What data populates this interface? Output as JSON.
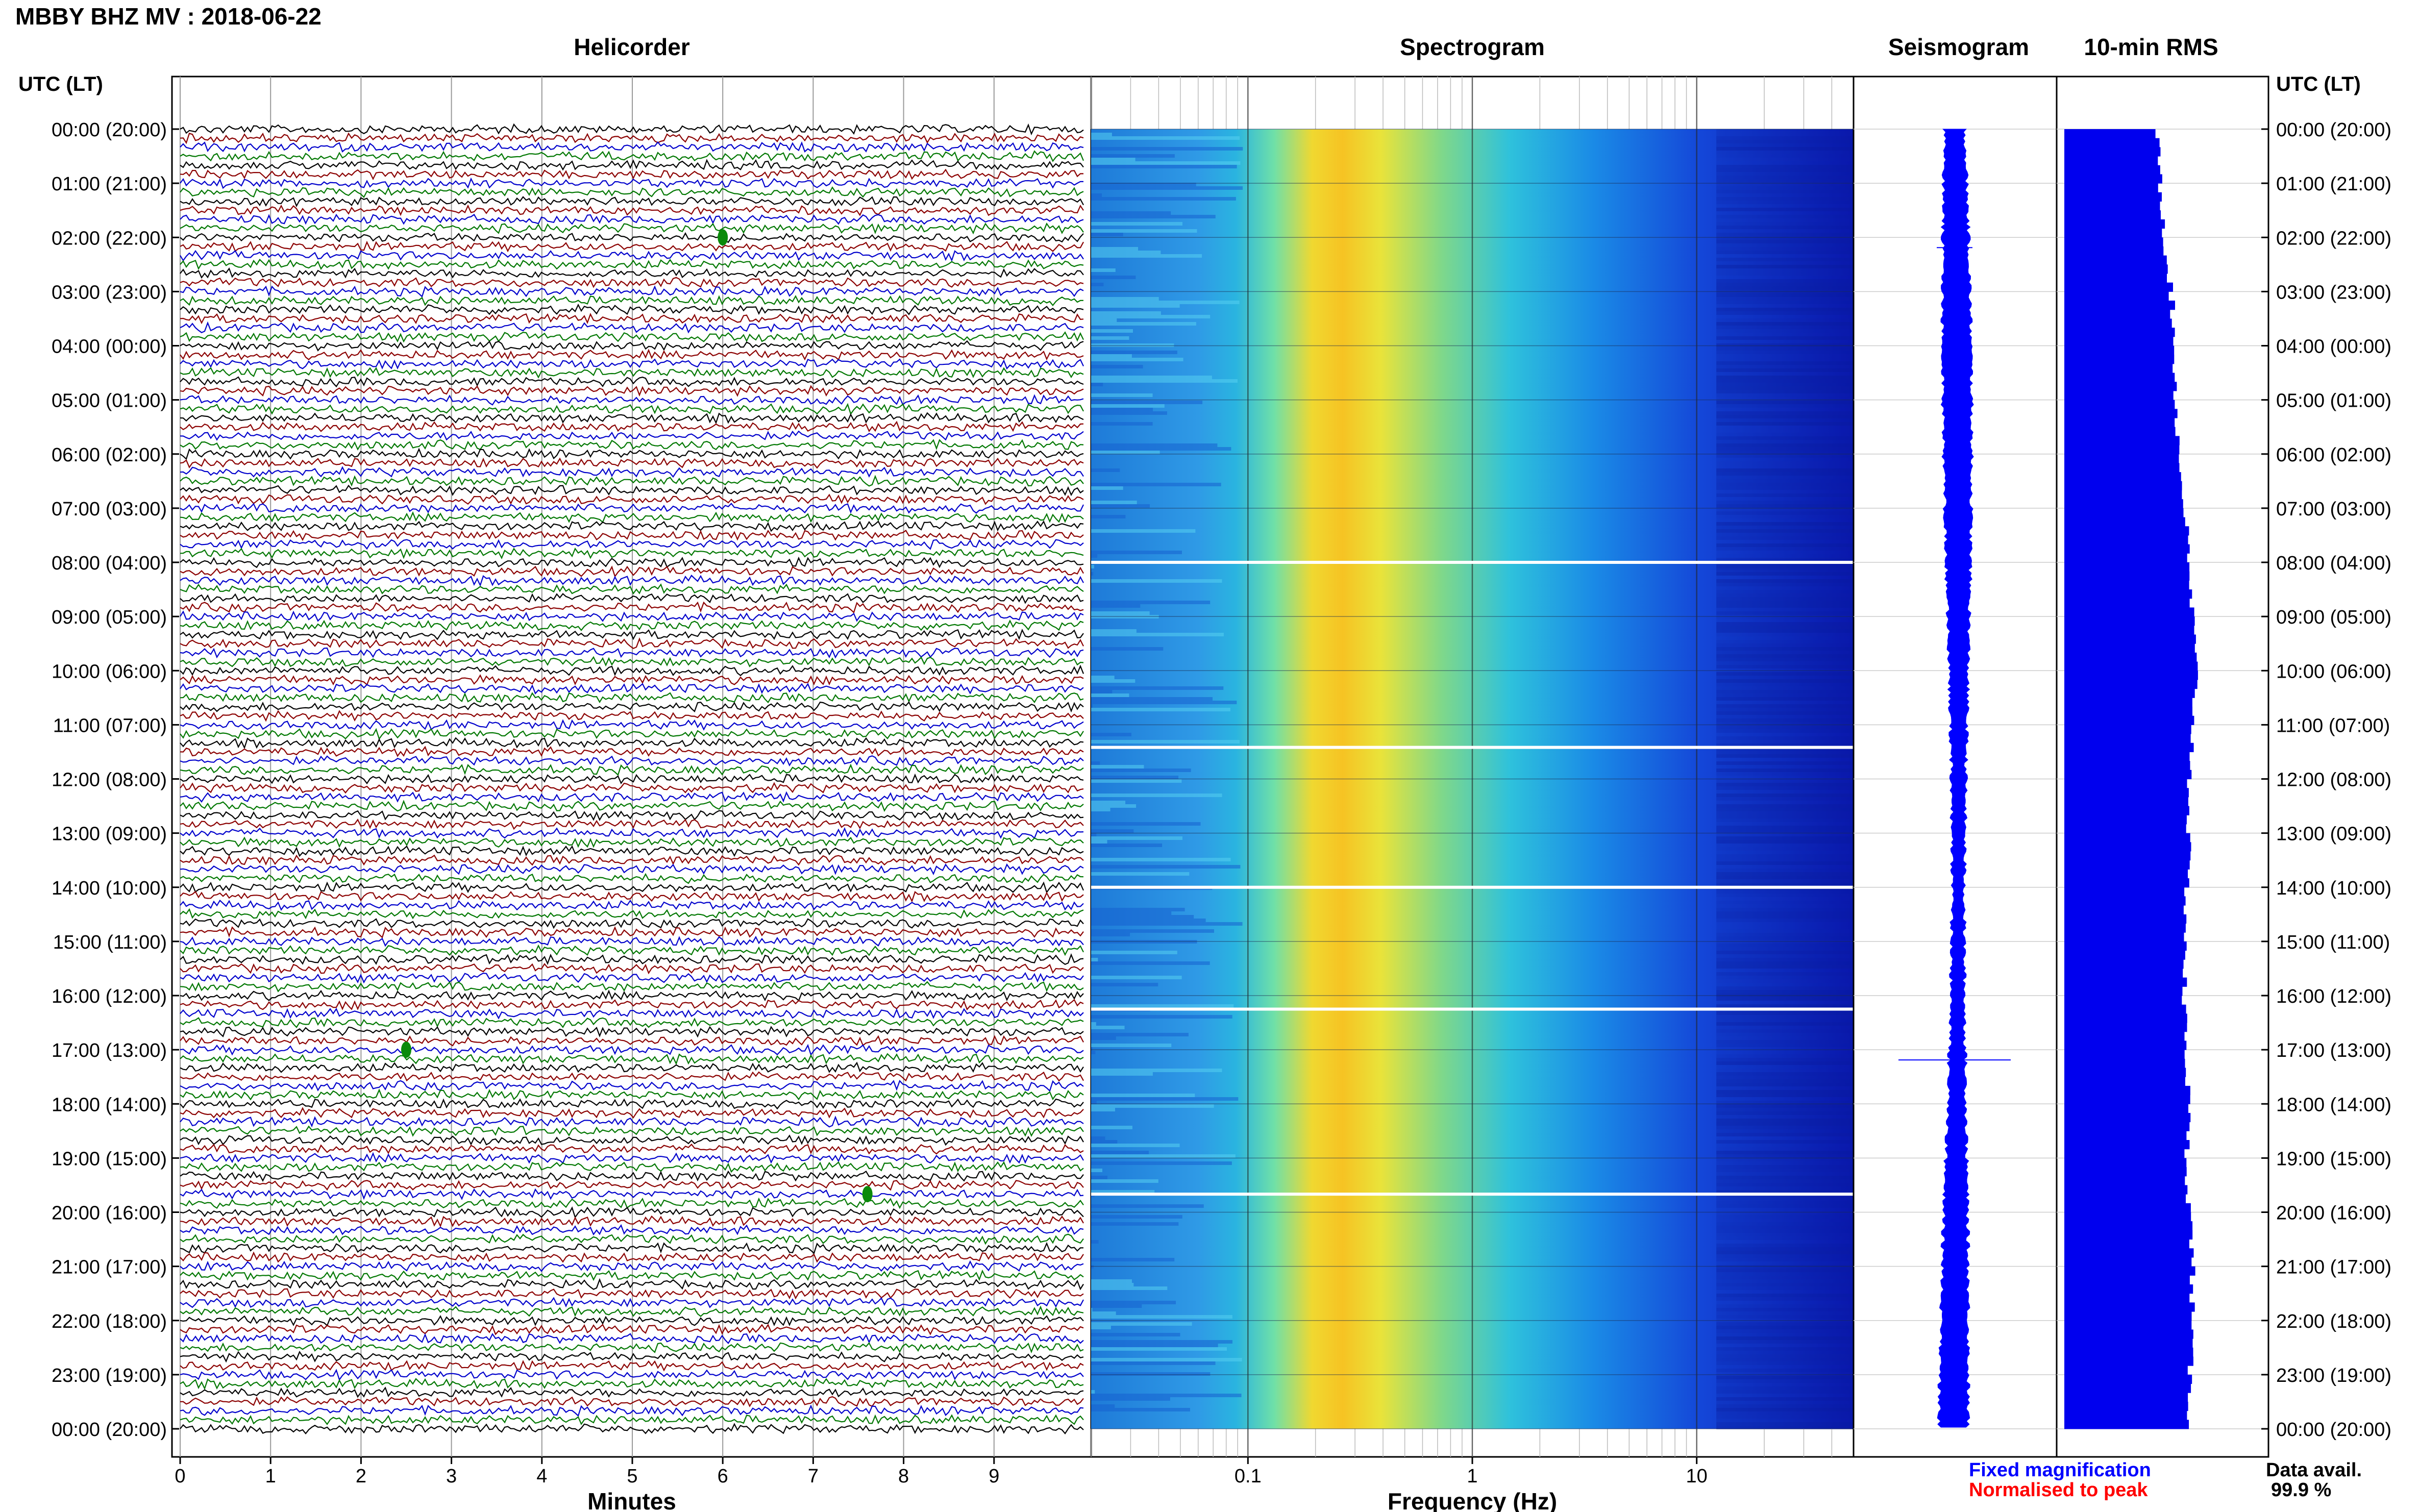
{
  "header": {
    "station_title": "MBBY BHZ MV : 2018-06-22",
    "utc_lt_label": "UTC (LT)"
  },
  "panels": {
    "helicorder": "Helicorder",
    "spectrogram": "Spectrogram",
    "seismogram": "Seismogram",
    "rms": "10-min RMS"
  },
  "footer": {
    "fixed_magnification": "Fixed magnification",
    "normalised_to_peak": "Normalised to peak",
    "data_avail_label": "Data avail.",
    "data_avail_value": "99.9 %"
  },
  "colors": {
    "trace_cycle": [
      "#000000",
      "#8b0000",
      "#0000cc",
      "#007700"
    ],
    "fixed_magnification": "#0000ff",
    "normalised_to_peak": "#ff0000",
    "rms_bar": "#0000ee",
    "seismogram": "#0000ff"
  },
  "chart_data": [
    {
      "type": "line",
      "title": "Helicorder",
      "xlabel": "Minutes",
      "x_ticks": [
        "0",
        "1",
        "2",
        "3",
        "4",
        "5",
        "6",
        "7",
        "8",
        "9"
      ],
      "xlim": [
        0,
        10
      ],
      "y_ticks": [
        "00:00 (20:00)",
        "01:00 (21:00)",
        "02:00 (22:00)",
        "03:00 (23:00)",
        "04:00 (00:00)",
        "05:00 (01:00)",
        "06:00 (02:00)",
        "07:00 (03:00)",
        "08:00 (04:00)",
        "09:00 (05:00)",
        "10:00 (06:00)",
        "11:00 (07:00)",
        "12:00 (08:00)",
        "13:00 (09:00)",
        "14:00 (10:00)",
        "15:00 (11:00)",
        "16:00 (12:00)",
        "17:00 (13:00)",
        "18:00 (14:00)",
        "19:00 (15:00)",
        "20:00 (16:00)",
        "21:00 (17:00)",
        "22:00 (18:00)",
        "23:00 (19:00)",
        "00:00 (20:00)"
      ],
      "lines_per_hour": 6,
      "minutes_per_line": 10,
      "events": [
        {
          "time_utc": "02:00",
          "minute": 6.0
        },
        {
          "time_utc": "17:00",
          "minute": 2.5
        },
        {
          "time_utc": "19:40",
          "minute": 7.6
        }
      ]
    },
    {
      "type": "heatmap",
      "title": "Spectrogram",
      "xlabel": "Frequency (Hz)",
      "x_scale": "log",
      "xlim": [
        0.02,
        50
      ],
      "x_ticks": [
        "0.1",
        "1",
        "10"
      ],
      "peak_band_hz": [
        0.2,
        0.5
      ],
      "data_gaps_utc": [
        "08:00",
        "11:25",
        "14:00",
        "16:15",
        "19:40"
      ]
    },
    {
      "type": "line",
      "title": "Seismogram",
      "spikes_utc": [
        "02:00",
        "17:00"
      ]
    },
    {
      "type": "bar",
      "title": "10-min RMS",
      "orientation": "horizontal",
      "xlim": [
        0,
        1
      ],
      "description_values_per_hour": [
        0.6,
        0.63,
        0.66,
        0.7,
        0.72,
        0.73,
        0.75,
        0.79,
        0.81,
        0.84,
        0.86,
        0.84,
        0.82,
        0.81,
        0.8,
        0.79,
        0.78,
        0.8,
        0.81,
        0.8,
        0.82,
        0.84,
        0.83,
        0.82,
        0.82
      ]
    }
  ]
}
